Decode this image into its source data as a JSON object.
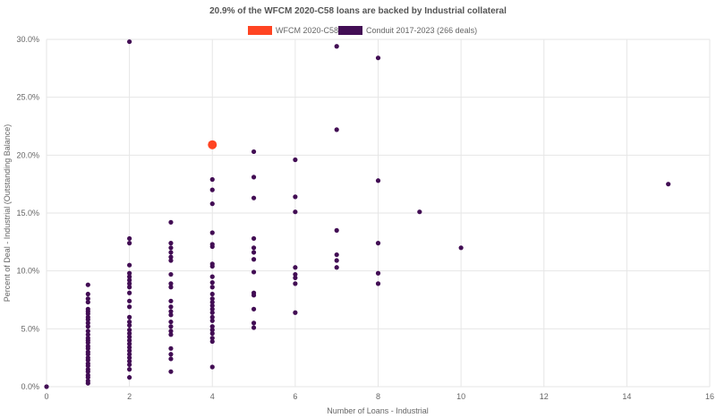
{
  "chart_data": {
    "type": "scatter",
    "title": "20.9% of the WFCM 2020-C58 loans are backed by Industrial collateral",
    "xlabel": "Number of Loans - Industrial",
    "ylabel": "Percent of Deal - Industrial (Outstanding Balance)",
    "xlim": [
      0,
      16
    ],
    "ylim": [
      0,
      30
    ],
    "xticks": [
      0,
      2,
      4,
      6,
      8,
      10,
      12,
      14,
      16
    ],
    "yticks": [
      "0.0%",
      "5.0%",
      "10.0%",
      "15.0%",
      "20.0%",
      "25.0%",
      "30.0%"
    ],
    "grid": true,
    "legend_position": "top-center",
    "series": [
      {
        "name": "WFCM 2020-C58",
        "color": "#ff4422",
        "points": [
          [
            4,
            20.9
          ]
        ]
      },
      {
        "name": "Conduit 2017-2023 (266 deals)",
        "color": "#420d54",
        "points": [
          [
            0,
            0
          ],
          [
            1,
            8.8
          ],
          [
            1,
            8.0
          ],
          [
            1,
            7.6
          ],
          [
            1,
            7.3
          ],
          [
            1,
            6.7
          ],
          [
            1,
            6.5
          ],
          [
            1,
            6.3
          ],
          [
            1,
            6.0
          ],
          [
            1,
            5.8
          ],
          [
            1,
            5.5
          ],
          [
            1,
            5.2
          ],
          [
            1,
            4.8
          ],
          [
            1,
            4.5
          ],
          [
            1,
            4.2
          ],
          [
            1,
            4.0
          ],
          [
            1,
            3.8
          ],
          [
            1,
            3.5
          ],
          [
            1,
            3.3
          ],
          [
            1,
            3.0
          ],
          [
            1,
            2.8
          ],
          [
            1,
            2.5
          ],
          [
            1,
            2.3
          ],
          [
            1,
            2.0
          ],
          [
            1,
            1.8
          ],
          [
            1,
            1.5
          ],
          [
            1,
            1.3
          ],
          [
            1,
            1.0
          ],
          [
            1,
            0.8
          ],
          [
            1,
            0.5
          ],
          [
            1,
            0.3
          ],
          [
            2,
            29.8
          ],
          [
            2,
            12.8
          ],
          [
            2,
            12.4
          ],
          [
            2,
            10.5
          ],
          [
            2,
            9.8
          ],
          [
            2,
            9.5
          ],
          [
            2,
            9.2
          ],
          [
            2,
            8.9
          ],
          [
            2,
            8.6
          ],
          [
            2,
            8.1
          ],
          [
            2,
            7.4
          ],
          [
            2,
            6.9
          ],
          [
            2,
            6.0
          ],
          [
            2,
            5.6
          ],
          [
            2,
            5.3
          ],
          [
            2,
            4.9
          ],
          [
            2,
            4.6
          ],
          [
            2,
            4.3
          ],
          [
            2,
            4.0
          ],
          [
            2,
            3.7
          ],
          [
            2,
            3.4
          ],
          [
            2,
            3.1
          ],
          [
            2,
            2.8
          ],
          [
            2,
            2.5
          ],
          [
            2,
            2.2
          ],
          [
            2,
            1.9
          ],
          [
            2,
            1.5
          ],
          [
            2,
            0.8
          ],
          [
            3,
            14.2
          ],
          [
            3,
            12.4
          ],
          [
            3,
            12.0
          ],
          [
            3,
            11.6
          ],
          [
            3,
            11.2
          ],
          [
            3,
            10.9
          ],
          [
            3,
            9.7
          ],
          [
            3,
            8.9
          ],
          [
            3,
            8.6
          ],
          [
            3,
            7.4
          ],
          [
            3,
            6.9
          ],
          [
            3,
            6.5
          ],
          [
            3,
            6.2
          ],
          [
            3,
            5.6
          ],
          [
            3,
            5.2
          ],
          [
            3,
            4.8
          ],
          [
            3,
            4.5
          ],
          [
            3,
            3.3
          ],
          [
            3,
            2.8
          ],
          [
            3,
            2.4
          ],
          [
            3,
            1.3
          ],
          [
            4,
            17.9
          ],
          [
            4,
            17.0
          ],
          [
            4,
            15.8
          ],
          [
            4,
            13.3
          ],
          [
            4,
            12.3
          ],
          [
            4,
            12.1
          ],
          [
            4,
            10.6
          ],
          [
            4,
            10.4
          ],
          [
            4,
            9.5
          ],
          [
            4,
            9.0
          ],
          [
            4,
            8.6
          ],
          [
            4,
            8.0
          ],
          [
            4,
            7.6
          ],
          [
            4,
            7.3
          ],
          [
            4,
            7.0
          ],
          [
            4,
            6.7
          ],
          [
            4,
            6.4
          ],
          [
            4,
            6.0
          ],
          [
            4,
            5.7
          ],
          [
            4,
            5.2
          ],
          [
            4,
            4.9
          ],
          [
            4,
            4.6
          ],
          [
            4,
            4.2
          ],
          [
            4,
            3.9
          ],
          [
            4,
            1.7
          ],
          [
            5,
            20.3
          ],
          [
            5,
            18.1
          ],
          [
            5,
            16.3
          ],
          [
            5,
            12.8
          ],
          [
            5,
            12.0
          ],
          [
            5,
            11.6
          ],
          [
            5,
            11.0
          ],
          [
            5,
            9.9
          ],
          [
            5,
            8.1
          ],
          [
            5,
            7.9
          ],
          [
            5,
            6.7
          ],
          [
            5,
            5.5
          ],
          [
            5,
            5.1
          ],
          [
            6,
            19.6
          ],
          [
            6,
            16.4
          ],
          [
            6,
            15.1
          ],
          [
            6,
            10.3
          ],
          [
            6,
            9.7
          ],
          [
            6,
            9.4
          ],
          [
            6,
            8.9
          ],
          [
            6,
            6.4
          ],
          [
            7,
            29.4
          ],
          [
            7,
            22.2
          ],
          [
            7,
            13.5
          ],
          [
            7,
            11.4
          ],
          [
            7,
            10.9
          ],
          [
            7,
            10.3
          ],
          [
            8,
            28.4
          ],
          [
            8,
            17.8
          ],
          [
            8,
            12.4
          ],
          [
            8,
            9.8
          ],
          [
            8,
            8.9
          ],
          [
            9,
            15.1
          ],
          [
            10,
            12.0
          ],
          [
            15,
            17.5
          ]
        ]
      }
    ]
  }
}
